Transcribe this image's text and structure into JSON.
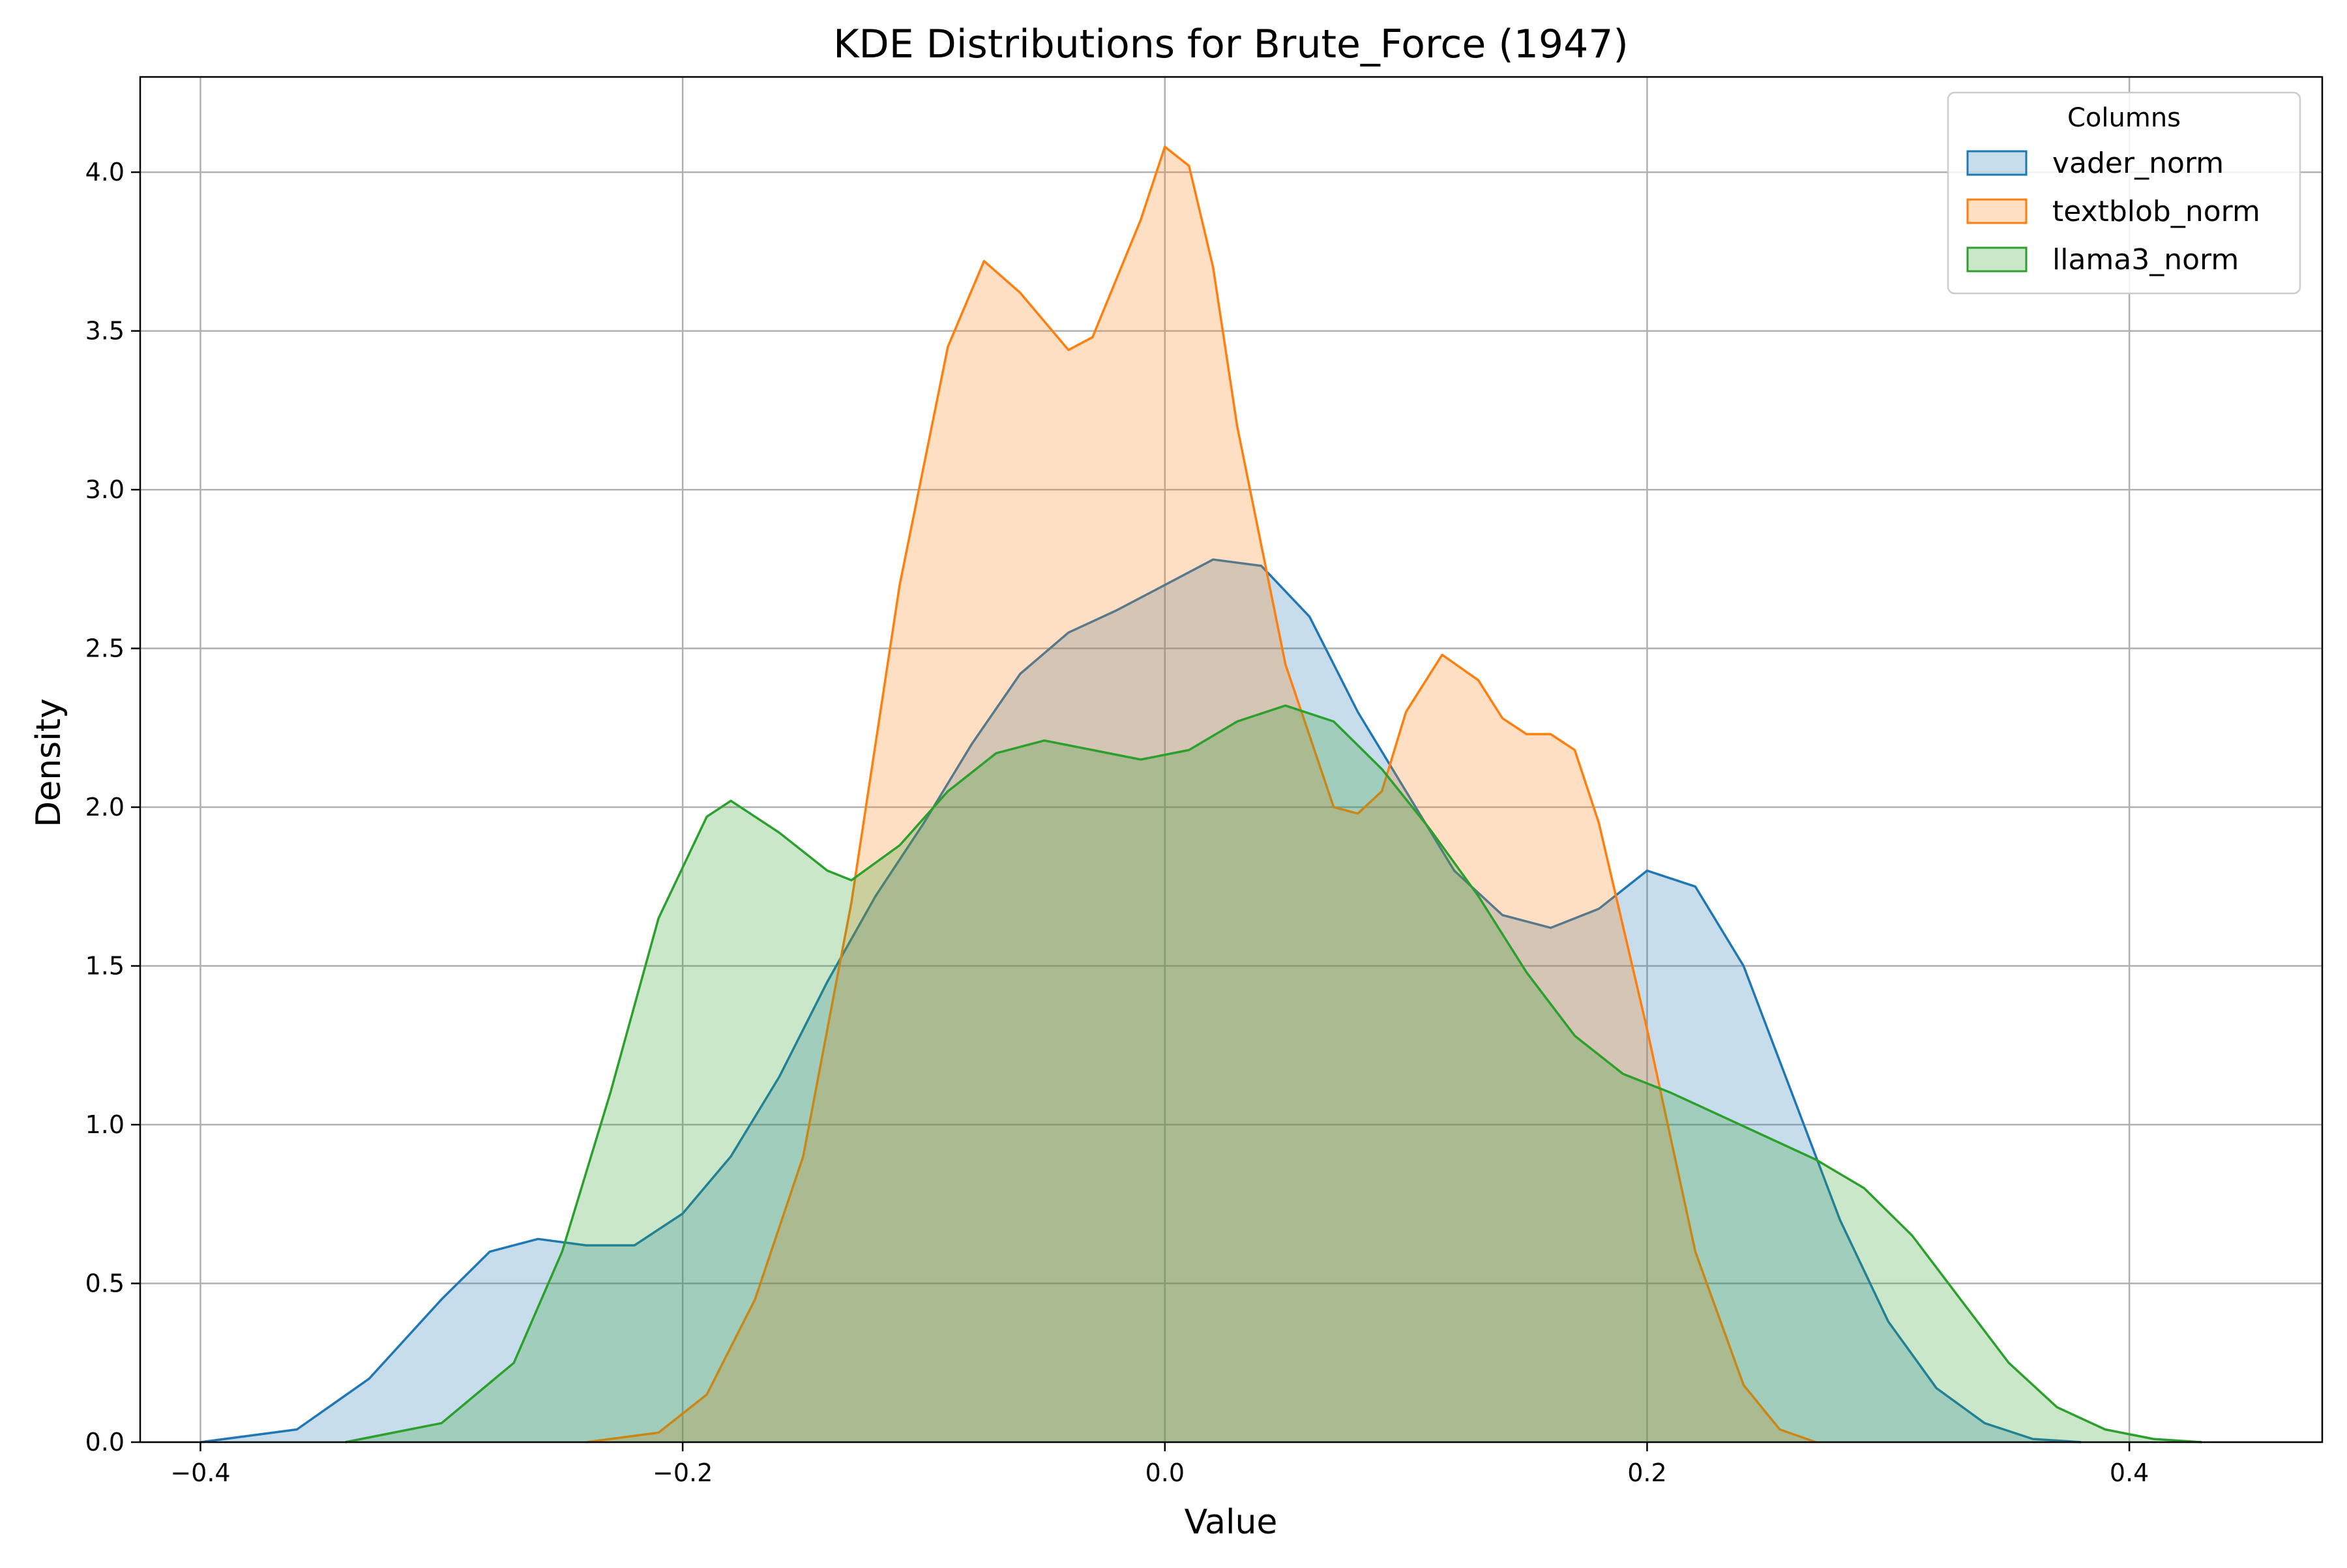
{
  "chart_data": {
    "type": "area",
    "title": "KDE Distributions for Brute_Force (1947)",
    "xlabel": "Value",
    "ylabel": "Density",
    "xlim": [
      -0.425,
      0.48
    ],
    "ylim": [
      0,
      4.3
    ],
    "xticks": [
      -0.4,
      -0.2,
      0.0,
      0.2,
      0.4
    ],
    "xtick_labels": [
      "−0.4",
      "−0.2",
      "0.0",
      "0.2",
      "0.4"
    ],
    "yticks": [
      0.0,
      0.5,
      1.0,
      1.5,
      2.0,
      2.5,
      3.0,
      3.5,
      4.0
    ],
    "ytick_labels": [
      "0.0",
      "0.5",
      "1.0",
      "1.5",
      "2.0",
      "2.5",
      "3.0",
      "3.5",
      "4.0"
    ],
    "grid": true,
    "legend": {
      "title": "Columns",
      "position": "top-right"
    },
    "series": [
      {
        "name": "vader_norm",
        "color": "#1f77b4",
        "points": [
          [
            -0.4,
            0.0
          ],
          [
            -0.36,
            0.04
          ],
          [
            -0.33,
            0.2
          ],
          [
            -0.3,
            0.45
          ],
          [
            -0.28,
            0.6
          ],
          [
            -0.26,
            0.64
          ],
          [
            -0.24,
            0.62
          ],
          [
            -0.22,
            0.62
          ],
          [
            -0.2,
            0.72
          ],
          [
            -0.18,
            0.9
          ],
          [
            -0.16,
            1.15
          ],
          [
            -0.14,
            1.45
          ],
          [
            -0.12,
            1.72
          ],
          [
            -0.1,
            1.95
          ],
          [
            -0.08,
            2.2
          ],
          [
            -0.06,
            2.42
          ],
          [
            -0.04,
            2.55
          ],
          [
            -0.02,
            2.62
          ],
          [
            0.0,
            2.7
          ],
          [
            0.02,
            2.78
          ],
          [
            0.04,
            2.76
          ],
          [
            0.06,
            2.6
          ],
          [
            0.08,
            2.3
          ],
          [
            0.1,
            2.05
          ],
          [
            0.12,
            1.8
          ],
          [
            0.14,
            1.66
          ],
          [
            0.16,
            1.62
          ],
          [
            0.18,
            1.68
          ],
          [
            0.2,
            1.8
          ],
          [
            0.22,
            1.75
          ],
          [
            0.24,
            1.5
          ],
          [
            0.26,
            1.1
          ],
          [
            0.28,
            0.7
          ],
          [
            0.3,
            0.38
          ],
          [
            0.32,
            0.17
          ],
          [
            0.34,
            0.06
          ],
          [
            0.36,
            0.01
          ],
          [
            0.38,
            0.0
          ]
        ]
      },
      {
        "name": "textblob_norm",
        "color": "#ff7f0e",
        "points": [
          [
            -0.24,
            0.0
          ],
          [
            -0.21,
            0.03
          ],
          [
            -0.19,
            0.15
          ],
          [
            -0.17,
            0.45
          ],
          [
            -0.15,
            0.9
          ],
          [
            -0.13,
            1.7
          ],
          [
            -0.11,
            2.7
          ],
          [
            -0.09,
            3.45
          ],
          [
            -0.075,
            3.72
          ],
          [
            -0.06,
            3.62
          ],
          [
            -0.04,
            3.44
          ],
          [
            -0.03,
            3.48
          ],
          [
            -0.01,
            3.85
          ],
          [
            0.0,
            4.08
          ],
          [
            0.01,
            4.02
          ],
          [
            0.02,
            3.7
          ],
          [
            0.03,
            3.2
          ],
          [
            0.05,
            2.45
          ],
          [
            0.07,
            2.0
          ],
          [
            0.08,
            1.98
          ],
          [
            0.09,
            2.05
          ],
          [
            0.1,
            2.3
          ],
          [
            0.115,
            2.48
          ],
          [
            0.13,
            2.4
          ],
          [
            0.14,
            2.28
          ],
          [
            0.15,
            2.23
          ],
          [
            0.16,
            2.23
          ],
          [
            0.17,
            2.18
          ],
          [
            0.18,
            1.95
          ],
          [
            0.2,
            1.3
          ],
          [
            0.22,
            0.6
          ],
          [
            0.24,
            0.18
          ],
          [
            0.255,
            0.04
          ],
          [
            0.27,
            0.0
          ]
        ]
      },
      {
        "name": "llama3_norm",
        "color": "#2ca02c",
        "points": [
          [
            -0.34,
            0.0
          ],
          [
            -0.3,
            0.06
          ],
          [
            -0.27,
            0.25
          ],
          [
            -0.25,
            0.6
          ],
          [
            -0.23,
            1.1
          ],
          [
            -0.21,
            1.65
          ],
          [
            -0.19,
            1.97
          ],
          [
            -0.18,
            2.02
          ],
          [
            -0.16,
            1.92
          ],
          [
            -0.14,
            1.8
          ],
          [
            -0.13,
            1.77
          ],
          [
            -0.11,
            1.88
          ],
          [
            -0.09,
            2.05
          ],
          [
            -0.07,
            2.17
          ],
          [
            -0.05,
            2.21
          ],
          [
            -0.03,
            2.18
          ],
          [
            -0.01,
            2.15
          ],
          [
            0.01,
            2.18
          ],
          [
            0.03,
            2.27
          ],
          [
            0.05,
            2.32
          ],
          [
            0.07,
            2.27
          ],
          [
            0.09,
            2.12
          ],
          [
            0.11,
            1.93
          ],
          [
            0.13,
            1.72
          ],
          [
            0.15,
            1.48
          ],
          [
            0.17,
            1.28
          ],
          [
            0.19,
            1.16
          ],
          [
            0.21,
            1.1
          ],
          [
            0.23,
            1.03
          ],
          [
            0.25,
            0.96
          ],
          [
            0.27,
            0.89
          ],
          [
            0.29,
            0.8
          ],
          [
            0.31,
            0.65
          ],
          [
            0.33,
            0.45
          ],
          [
            0.35,
            0.25
          ],
          [
            0.37,
            0.11
          ],
          [
            0.39,
            0.04
          ],
          [
            0.41,
            0.01
          ],
          [
            0.43,
            0.0
          ]
        ]
      }
    ]
  }
}
